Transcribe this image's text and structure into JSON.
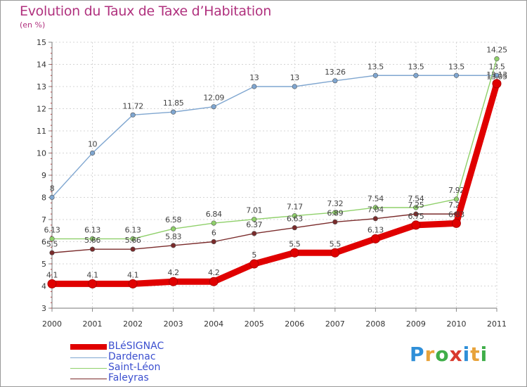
{
  "header": {
    "title": "Evolution du Taux de Taxe d’Habitation",
    "subtitle": "(en %)"
  },
  "logo": {
    "text": "Proxiti",
    "colors": [
      "#2f8fd8",
      "#e8a33b",
      "#3fae49",
      "#d93a2e",
      "#2f8fd8",
      "#e8a33b",
      "#3fae49"
    ]
  },
  "chart_data": {
    "type": "line",
    "title": "Evolution du Taux de Taxe d’Habitation",
    "ylabel": "(en %)",
    "x": [
      "2000",
      "2001",
      "2002",
      "2003",
      "2004",
      "2005",
      "2006",
      "2007",
      "2008",
      "2009",
      "2010",
      "2011"
    ],
    "ylim": [
      3,
      15
    ],
    "yticks": [
      "3",
      "4",
      "5",
      "6",
      "7",
      "8",
      "9",
      "10",
      "11",
      "12",
      "13",
      "14",
      "15"
    ],
    "grid": true,
    "legend_position": "bottom-left",
    "series": [
      {
        "name": "BLéSIGNAC",
        "color": "#e00000",
        "values": [
          4.1,
          4.1,
          4.1,
          4.2,
          4.2,
          5,
          5.5,
          5.5,
          6.13,
          6.75,
          6.83,
          13.13
        ],
        "labels": [
          "4.1",
          "4.1",
          "4.1",
          "4.2",
          "4.2",
          "5",
          "5.5",
          "5.5",
          "6.13",
          "6.75",
          "6.83",
          "13.13"
        ]
      },
      {
        "name": "Dardenac",
        "color": "#7fa6d0",
        "values": [
          8,
          10,
          11.72,
          11.85,
          12.09,
          13,
          13,
          13.26,
          13.5,
          13.5,
          13.5,
          13.5
        ],
        "labels": [
          "8",
          "10",
          "11.72",
          "11.85",
          "12.09",
          "13",
          "13",
          "13.26",
          "13.5",
          "13.5",
          "13.5",
          "13.5"
        ]
      },
      {
        "name": "Saint-Léon",
        "color": "#8fd06a",
        "values": [
          6.13,
          6.13,
          6.13,
          6.58,
          6.84,
          7.01,
          7.17,
          7.32,
          7.54,
          7.54,
          7.92,
          14.25
        ],
        "labels": [
          "6.13",
          "6.13",
          "6.13",
          "6.58",
          "6.84",
          "7.01",
          "7.17",
          "7.32",
          "7.54",
          "7.54",
          "7.92",
          "14.25"
        ]
      },
      {
        "name": "Faleyras",
        "color": "#7a2b2b",
        "values": [
          5.5,
          5.66,
          5.66,
          5.83,
          6,
          6.37,
          6.63,
          6.89,
          7.04,
          7.25,
          7.25,
          13.05
        ],
        "labels": [
          "5.5",
          "5.66",
          "5.66",
          "5.83",
          "6",
          "6.37",
          "6.63",
          "6.89",
          "7.04",
          "7.25",
          "7.25",
          "13.05"
        ]
      }
    ]
  }
}
